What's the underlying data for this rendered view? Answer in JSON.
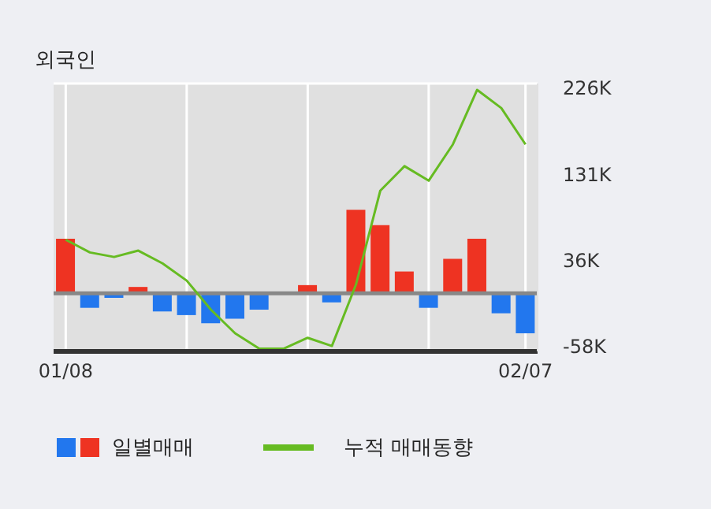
{
  "chart_data": {
    "type": "bar",
    "title": "외국인",
    "categories": [
      "01/08",
      null,
      null,
      null,
      null,
      null,
      null,
      null,
      null,
      null,
      null,
      null,
      null,
      null,
      null,
      null,
      null,
      null,
      null,
      "02/07"
    ],
    "series": [
      {
        "name": "일별매매",
        "colors": [
          "#ee3322",
          "#2277ee",
          "#2277ee",
          "#ee3322",
          "#2277ee",
          "#2277ee",
          "#2277ee",
          "#2277ee",
          "#2277ee",
          "#ee3322",
          "#ee3322",
          "#2277ee",
          "#ee3322",
          "#ee3322",
          "#ee3322",
          "#2277ee",
          "#ee3322",
          "#ee3322",
          "#2277ee",
          "#2277ee"
        ],
        "values": [
          60,
          -16,
          -5,
          7,
          -20,
          -24,
          -33,
          -28,
          -18,
          0,
          9,
          -10,
          92,
          75,
          24,
          -16,
          38,
          60,
          -22,
          -44
        ]
      },
      {
        "name": "누적 매매동향",
        "type": "line",
        "color": "#66bb22",
        "values": [
          59,
          45,
          40,
          47,
          33,
          14,
          -18,
          -44,
          -61,
          -61,
          -49,
          -58,
          10,
          113,
          140,
          124,
          164,
          224,
          204,
          164
        ]
      }
    ],
    "ylim": [
      -64,
      231
    ],
    "yticks": [
      {
        "value": -58,
        "label": "-58K"
      },
      {
        "value": 36,
        "label": "36K"
      },
      {
        "value": 131,
        "label": "131K"
      },
      {
        "value": 226,
        "label": "226K"
      }
    ],
    "ref_lines": [
      {
        "axis": "y",
        "value": 0,
        "color": "#888888"
      }
    ],
    "grid": true,
    "legend": "bottom",
    "marker": "none"
  }
}
